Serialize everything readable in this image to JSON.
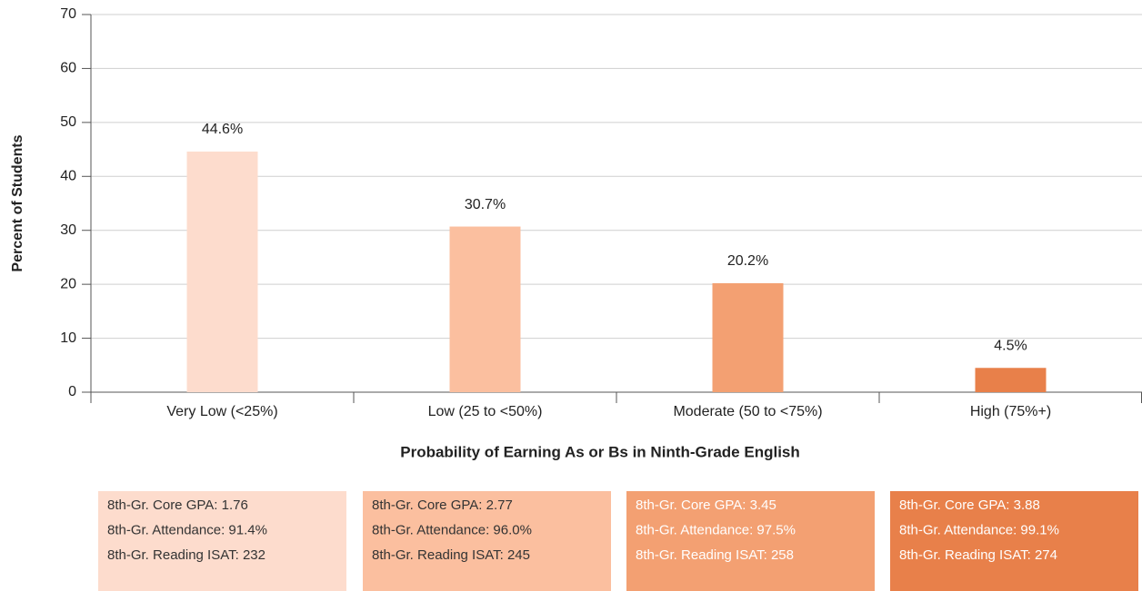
{
  "chart_data": {
    "type": "bar",
    "x_label": "Probability of Earning As or Bs in Ninth-Grade English",
    "y_label": "Percent of Students",
    "categories": [
      "Very Low (<25%)",
      "Low (25 to <50%)",
      "Moderate (50 to <75%)",
      "High (75%+)"
    ],
    "values": [
      44.6,
      30.7,
      20.2,
      4.5
    ],
    "value_labels": [
      "44.6%",
      "30.7%",
      "20.2%",
      "4.5%"
    ],
    "colors": [
      "#fddccd",
      "#fbbf9f",
      "#f3a072",
      "#e8804a"
    ],
    "ylim": [
      0,
      70
    ],
    "yticks": [
      0,
      10,
      20,
      30,
      40,
      50,
      60,
      70
    ],
    "grid": true,
    "boxes": [
      [
        "8th-Gr. Core GPA: 1.76",
        "8th-Gr. Attendance: 91.4%",
        "8th-Gr. Reading ISAT: 232"
      ],
      [
        "8th-Gr. Core GPA: 2.77",
        "8th-Gr. Attendance: 96.0%",
        "8th-Gr. Reading ISAT: 245"
      ],
      [
        "8th-Gr. Core GPA: 3.45",
        "8th-Gr. Attendance: 97.5%",
        "8th-Gr. Reading ISAT: 258"
      ],
      [
        "8th-Gr. Core GPA: 3.88",
        "8th-Gr. Attendance: 99.1%",
        "8th-Gr. Reading ISAT: 274"
      ]
    ],
    "box_text_colors": [
      "#333333",
      "#333333",
      "#ffffff",
      "#ffffff"
    ]
  }
}
